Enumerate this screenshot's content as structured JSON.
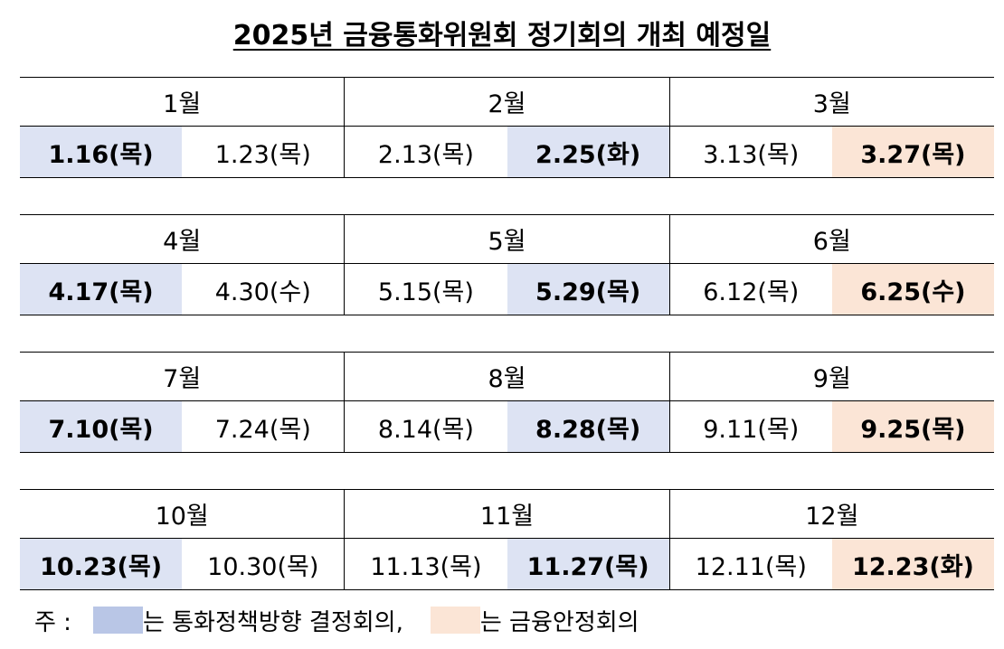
{
  "title": "2025년 금융통화위원회 정기회의 개최 예정일",
  "rows": [
    {
      "months": [
        "1월",
        "2월",
        "3월"
      ],
      "dates": [
        {
          "text": "1.16(목)",
          "type": "blue"
        },
        {
          "text": "1.23(목)",
          "type": "plain"
        },
        {
          "text": "2.13(목)",
          "type": "plain"
        },
        {
          "text": "2.25(화)",
          "type": "blue"
        },
        {
          "text": "3.13(목)",
          "type": "plain"
        },
        {
          "text": "3.27(목)",
          "type": "orange"
        }
      ]
    },
    {
      "months": [
        "4월",
        "5월",
        "6월"
      ],
      "dates": [
        {
          "text": "4.17(목)",
          "type": "blue"
        },
        {
          "text": "4.30(수)",
          "type": "plain"
        },
        {
          "text": "5.15(목)",
          "type": "plain"
        },
        {
          "text": "5.29(목)",
          "type": "blue"
        },
        {
          "text": "6.12(목)",
          "type": "plain"
        },
        {
          "text": "6.25(수)",
          "type": "orange"
        }
      ]
    },
    {
      "months": [
        "7월",
        "8월",
        "9월"
      ],
      "dates": [
        {
          "text": "7.10(목)",
          "type": "blue"
        },
        {
          "text": "7.24(목)",
          "type": "plain"
        },
        {
          "text": "8.14(목)",
          "type": "plain"
        },
        {
          "text": "8.28(목)",
          "type": "blue"
        },
        {
          "text": "9.11(목)",
          "type": "plain"
        },
        {
          "text": "9.25(목)",
          "type": "orange"
        }
      ]
    },
    {
      "months": [
        "10월",
        "11월",
        "12월"
      ],
      "dates": [
        {
          "text": "10.23(목)",
          "type": "blue"
        },
        {
          "text": "10.30(목)",
          "type": "plain"
        },
        {
          "text": "11.13(목)",
          "type": "plain"
        },
        {
          "text": "11.27(목)",
          "type": "blue"
        },
        {
          "text": "12.11(목)",
          "type": "plain"
        },
        {
          "text": "12.23(화)",
          "type": "orange"
        }
      ]
    }
  ],
  "legend": {
    "prefix": "주 :",
    "blue_text": "는 통화정책방향 결정회의,",
    "orange_text": "는 금융안정회의",
    "blue_color": "#b9c6e6",
    "orange_color": "#fbe5d6"
  }
}
